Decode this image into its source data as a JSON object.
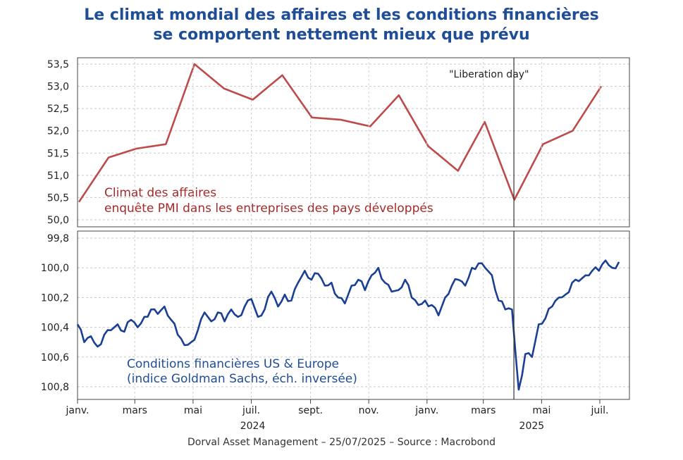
{
  "title_line1": "Le climat mondial des affaires et les conditions financières",
  "title_line2": "se comportent nettement mieux que prévu",
  "source": "Dorval Asset Management – 25/07/2025  –   Source : Macrobond",
  "annotation": "\"Liberation day\"",
  "colors": {
    "pmi": "#bd4b4b",
    "fin": "#1a3f94",
    "title": "#1f4e96"
  },
  "x_axis": {
    "ticks": [
      "janv.",
      "mars",
      "mai",
      "juil.",
      "sept.",
      "nov.",
      "janv.",
      "mars",
      "mai",
      "juil."
    ],
    "years": [
      "2024",
      "2025"
    ]
  },
  "chart_data": [
    {
      "type": "line",
      "panel": "top",
      "label_line1": "Climat des affaires",
      "label_line2": "enquête PMI dans les entreprises des pays développés",
      "ylim": [
        50.0,
        53.5
      ],
      "yticks": [
        "50,0",
        "50,5",
        "51,0",
        "51,5",
        "52,0",
        "52,5",
        "53,0",
        "53,5"
      ],
      "x": [
        "2024-01",
        "2024-02",
        "2024-03",
        "2024-04",
        "2024-05",
        "2024-06",
        "2024-07",
        "2024-08",
        "2024-09",
        "2024-10",
        "2024-11",
        "2024-12",
        "2025-01",
        "2025-02",
        "2025-03",
        "2025-04",
        "2025-05",
        "2025-06",
        "2025-07"
      ],
      "values": [
        50.4,
        51.4,
        51.6,
        51.7,
        53.5,
        52.95,
        52.7,
        53.25,
        52.3,
        52.25,
        52.1,
        52.8,
        51.65,
        51.1,
        52.2,
        50.45,
        51.7,
        52.0,
        53.0
      ],
      "event_x": "2025-04-02",
      "grid": true
    },
    {
      "type": "line",
      "panel": "bottom",
      "label_line1": "Conditions financières US & Europe",
      "label_line2": "(indice Goldman Sachs, éch. inversée)",
      "ylim": [
        99.8,
        100.9
      ],
      "y_inverted": true,
      "yticks": [
        "99,8",
        "100,0",
        "100,2",
        "100,4",
        "100,6",
        "100,8"
      ],
      "x": [
        "2024-01-01",
        "2024-01-08",
        "2024-01-15",
        "2024-01-22",
        "2024-01-29",
        "2024-02-05",
        "2024-02-12",
        "2024-02-19",
        "2024-02-26",
        "2024-03-04",
        "2024-03-11",
        "2024-03-18",
        "2024-03-25",
        "2024-04-01",
        "2024-04-08",
        "2024-04-15",
        "2024-04-22",
        "2024-04-29",
        "2024-05-06",
        "2024-05-13",
        "2024-05-20",
        "2024-05-27",
        "2024-06-03",
        "2024-06-10",
        "2024-06-17",
        "2024-06-24",
        "2024-07-01",
        "2024-07-08",
        "2024-07-15",
        "2024-07-22",
        "2024-07-29",
        "2024-08-05",
        "2024-08-12",
        "2024-08-19",
        "2024-08-26",
        "2024-09-02",
        "2024-09-09",
        "2024-09-16",
        "2024-09-23",
        "2024-09-30",
        "2024-10-07",
        "2024-10-14",
        "2024-10-21",
        "2024-10-28",
        "2024-11-04",
        "2024-11-11",
        "2024-11-18",
        "2024-11-25",
        "2024-12-02",
        "2024-12-09",
        "2024-12-16",
        "2024-12-23",
        "2024-12-30",
        "2025-01-06",
        "2025-01-13",
        "2025-01-20",
        "2025-01-27",
        "2025-02-03",
        "2025-02-10",
        "2025-02-17",
        "2025-02-24",
        "2025-03-03",
        "2025-03-10",
        "2025-03-17",
        "2025-03-24",
        "2025-03-31",
        "2025-04-07",
        "2025-04-14",
        "2025-04-21",
        "2025-04-28",
        "2025-05-05",
        "2025-05-12",
        "2025-05-19",
        "2025-05-26",
        "2025-06-02",
        "2025-06-09",
        "2025-06-16",
        "2025-06-23",
        "2025-06-30",
        "2025-07-07",
        "2025-07-14",
        "2025-07-21"
      ],
      "values": [
        100.38,
        100.5,
        100.46,
        100.53,
        100.45,
        100.42,
        100.38,
        100.43,
        100.35,
        100.4,
        100.33,
        100.28,
        100.31,
        100.26,
        100.35,
        100.45,
        100.52,
        100.5,
        100.42,
        100.3,
        100.36,
        100.3,
        100.36,
        100.28,
        100.33,
        100.26,
        100.21,
        100.33,
        100.28,
        100.16,
        100.26,
        100.18,
        100.22,
        100.1,
        100.02,
        100.08,
        100.04,
        100.12,
        100.1,
        100.2,
        100.24,
        100.12,
        100.08,
        100.15,
        100.05,
        100.0,
        100.1,
        100.16,
        100.15,
        100.08,
        100.2,
        100.25,
        100.22,
        100.25,
        100.32,
        100.2,
        100.12,
        100.08,
        100.12,
        100.0,
        99.97,
        100.0,
        100.05,
        100.22,
        100.28,
        100.28,
        100.82,
        100.58,
        100.6,
        100.38,
        100.34,
        100.26,
        100.2,
        100.18,
        100.1,
        100.09,
        100.05,
        100.02,
        100.02,
        99.95,
        100.0,
        99.96
      ],
      "event_x": "2025-04-02",
      "grid": true
    }
  ]
}
